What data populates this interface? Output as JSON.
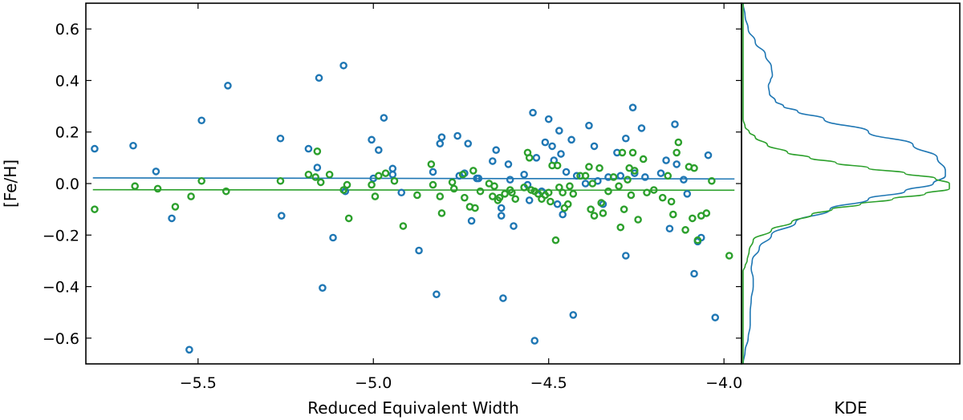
{
  "chart_data": [
    {
      "type": "scatter",
      "panel": "main",
      "xlabel": "Reduced Equivalent Width",
      "ylabel": "[Fe/H]",
      "xlim": [
        -5.82,
        -3.95
      ],
      "ylim": [
        -0.7,
        0.7
      ],
      "xticks": [
        -5.5,
        -5.0,
        -4.5,
        -4.0
      ],
      "xtick_labels": [
        "−5.5",
        "−5.0",
        "−4.5",
        "−4.0"
      ],
      "yticks": [
        0.6,
        0.4,
        0.2,
        0.0,
        -0.2,
        -0.4,
        -0.6
      ],
      "ytick_labels": [
        "0.6",
        "0.4",
        "0.2",
        "0.0",
        "−0.2",
        "−0.4",
        "−0.6"
      ],
      "series": [
        {
          "name": "blue",
          "color": "#1f77b4",
          "marker": "open-circle",
          "fit_line": {
            "x": [
              -5.8,
              -3.97
            ],
            "y": [
              0.022,
              0.018
            ]
          },
          "points": [
            [
              -5.795,
              0.135
            ],
            [
              -5.685,
              0.147
            ],
            [
              -5.62,
              0.047
            ],
            [
              -5.575,
              -0.135
            ],
            [
              -5.525,
              -0.645
            ],
            [
              -5.49,
              0.245
            ],
            [
              -5.415,
              0.38
            ],
            [
              -5.265,
              0.175
            ],
            [
              -5.262,
              -0.125
            ],
            [
              -5.185,
              0.135
            ],
            [
              -5.16,
              0.062
            ],
            [
              -5.155,
              0.41
            ],
            [
              -5.145,
              -0.405
            ],
            [
              -5.115,
              -0.21
            ],
            [
              -5.085,
              0.458
            ],
            [
              -5.08,
              -0.03
            ],
            [
              -5.005,
              0.17
            ],
            [
              -5.0,
              0.02
            ],
            [
              -4.985,
              0.13
            ],
            [
              -4.97,
              0.255
            ],
            [
              -4.945,
              0.035
            ],
            [
              -4.945,
              0.058
            ],
            [
              -4.92,
              -0.035
            ],
            [
              -4.87,
              -0.26
            ],
            [
              -4.83,
              0.045
            ],
            [
              -4.82,
              -0.43
            ],
            [
              -4.81,
              0.155
            ],
            [
              -4.805,
              0.18
            ],
            [
              -4.76,
              0.185
            ],
            [
              -4.755,
              0.03
            ],
            [
              -4.74,
              0.04
            ],
            [
              -4.73,
              0.155
            ],
            [
              -4.72,
              -0.145
            ],
            [
              -4.705,
              0.02
            ],
            [
              -4.7,
              0.02
            ],
            [
              -4.66,
              0.087
            ],
            [
              -4.65,
              0.13
            ],
            [
              -4.635,
              -0.095
            ],
            [
              -4.635,
              -0.125
            ],
            [
              -4.63,
              -0.445
            ],
            [
              -4.615,
              0.075
            ],
            [
              -4.61,
              0.015
            ],
            [
              -4.6,
              -0.165
            ],
            [
              -4.57,
              0.035
            ],
            [
              -4.56,
              -0.005
            ],
            [
              -4.555,
              -0.065
            ],
            [
              -4.545,
              0.275
            ],
            [
              -4.54,
              -0.61
            ],
            [
              -4.535,
              0.1
            ],
            [
              -4.52,
              -0.03
            ],
            [
              -4.51,
              0.16
            ],
            [
              -4.5,
              0.25
            ],
            [
              -4.49,
              0.145
            ],
            [
              -4.485,
              0.09
            ],
            [
              -4.475,
              -0.08
            ],
            [
              -4.47,
              0.205
            ],
            [
              -4.465,
              0.115
            ],
            [
              -4.46,
              -0.12
            ],
            [
              -4.45,
              0.045
            ],
            [
              -4.435,
              0.17
            ],
            [
              -4.43,
              -0.51
            ],
            [
              -4.42,
              0.03
            ],
            [
              -4.395,
              0.0
            ],
            [
              -4.385,
              0.225
            ],
            [
              -4.37,
              0.145
            ],
            [
              -4.36,
              0.01
            ],
            [
              -4.345,
              -0.08
            ],
            [
              -4.33,
              0.025
            ],
            [
              -4.305,
              0.12
            ],
            [
              -4.295,
              0.03
            ],
            [
              -4.28,
              0.175
            ],
            [
              -4.28,
              -0.28
            ],
            [
              -4.26,
              0.295
            ],
            [
              -4.255,
              0.04
            ],
            [
              -4.235,
              0.215
            ],
            [
              -4.225,
              0.025
            ],
            [
              -4.18,
              0.04
            ],
            [
              -4.165,
              0.09
            ],
            [
              -4.155,
              -0.175
            ],
            [
              -4.14,
              0.23
            ],
            [
              -4.135,
              0.075
            ],
            [
              -4.115,
              0.015
            ],
            [
              -4.105,
              -0.04
            ],
            [
              -4.085,
              -0.35
            ],
            [
              -4.075,
              -0.225
            ],
            [
              -4.065,
              -0.21
            ],
            [
              -4.045,
              0.11
            ],
            [
              -4.025,
              -0.52
            ]
          ]
        },
        {
          "name": "green",
          "color": "#2ca02c",
          "marker": "open-circle",
          "fit_line": {
            "x": [
              -5.8,
              -3.97
            ],
            "y": [
              -0.024,
              -0.026
            ]
          },
          "points": [
            [
              -5.795,
              -0.1
            ],
            [
              -5.68,
              -0.01
            ],
            [
              -5.615,
              -0.02
            ],
            [
              -5.565,
              -0.09
            ],
            [
              -5.52,
              -0.05
            ],
            [
              -5.49,
              0.01
            ],
            [
              -5.42,
              -0.03
            ],
            [
              -5.265,
              0.01
            ],
            [
              -5.185,
              0.035
            ],
            [
              -5.165,
              0.025
            ],
            [
              -5.16,
              0.125
            ],
            [
              -5.15,
              0.005
            ],
            [
              -5.125,
              0.035
            ],
            [
              -5.085,
              -0.025
            ],
            [
              -5.075,
              -0.005
            ],
            [
              -5.07,
              -0.135
            ],
            [
              -5.005,
              -0.005
            ],
            [
              -4.995,
              -0.05
            ],
            [
              -4.985,
              0.03
            ],
            [
              -4.965,
              0.04
            ],
            [
              -4.94,
              0.01
            ],
            [
              -4.915,
              -0.165
            ],
            [
              -4.875,
              -0.045
            ],
            [
              -4.835,
              0.075
            ],
            [
              -4.83,
              -0.005
            ],
            [
              -4.81,
              -0.05
            ],
            [
              -4.805,
              -0.115
            ],
            [
              -4.775,
              0.005
            ],
            [
              -4.77,
              -0.02
            ],
            [
              -4.745,
              0.035
            ],
            [
              -4.74,
              -0.055
            ],
            [
              -4.725,
              -0.09
            ],
            [
              -4.715,
              0.05
            ],
            [
              -4.71,
              -0.095
            ],
            [
              -4.695,
              -0.03
            ],
            [
              -4.67,
              0.0
            ],
            [
              -4.66,
              -0.05
            ],
            [
              -4.655,
              -0.01
            ],
            [
              -4.645,
              -0.065
            ],
            [
              -4.64,
              -0.055
            ],
            [
              -4.625,
              -0.04
            ],
            [
              -4.61,
              -0.025
            ],
            [
              -4.605,
              -0.035
            ],
            [
              -4.595,
              -0.06
            ],
            [
              -4.57,
              -0.015
            ],
            [
              -4.56,
              0.12
            ],
            [
              -4.555,
              0.1
            ],
            [
              -4.55,
              -0.025
            ],
            [
              -4.54,
              -0.03
            ],
            [
              -4.53,
              -0.04
            ],
            [
              -4.52,
              -0.06
            ],
            [
              -4.51,
              -0.045
            ],
            [
              -4.5,
              -0.035
            ],
            [
              -4.495,
              -0.07
            ],
            [
              -4.49,
              0.07
            ],
            [
              -4.48,
              -0.22
            ],
            [
              -4.475,
              0.07
            ],
            [
              -4.47,
              -0.015
            ],
            [
              -4.46,
              -0.035
            ],
            [
              -4.455,
              -0.095
            ],
            [
              -4.445,
              -0.08
            ],
            [
              -4.44,
              -0.01
            ],
            [
              -4.43,
              -0.04
            ],
            [
              -4.41,
              0.03
            ],
            [
              -4.395,
              0.03
            ],
            [
              -4.385,
              0.065
            ],
            [
              -4.38,
              -0.1
            ],
            [
              -4.375,
              0.0
            ],
            [
              -4.37,
              -0.125
            ],
            [
              -4.355,
              0.06
            ],
            [
              -4.35,
              -0.075
            ],
            [
              -4.345,
              -0.115
            ],
            [
              -4.33,
              -0.03
            ],
            [
              -4.315,
              0.025
            ],
            [
              -4.3,
              -0.01
            ],
            [
              -4.295,
              -0.17
            ],
            [
              -4.29,
              0.12
            ],
            [
              -4.285,
              -0.1
            ],
            [
              -4.275,
              0.015
            ],
            [
              -4.27,
              0.06
            ],
            [
              -4.265,
              -0.045
            ],
            [
              -4.26,
              0.12
            ],
            [
              -4.255,
              0.05
            ],
            [
              -4.245,
              -0.14
            ],
            [
              -4.23,
              0.095
            ],
            [
              -4.22,
              -0.035
            ],
            [
              -4.2,
              -0.025
            ],
            [
              -4.175,
              -0.055
            ],
            [
              -4.16,
              0.03
            ],
            [
              -4.15,
              -0.07
            ],
            [
              -4.145,
              -0.12
            ],
            [
              -4.135,
              0.12
            ],
            [
              -4.13,
              0.16
            ],
            [
              -4.11,
              -0.18
            ],
            [
              -4.1,
              0.065
            ],
            [
              -4.09,
              -0.135
            ],
            [
              -4.085,
              0.06
            ],
            [
              -4.075,
              -0.22
            ],
            [
              -4.065,
              -0.125
            ],
            [
              -4.05,
              -0.115
            ],
            [
              -4.035,
              0.01
            ],
            [
              -3.985,
              -0.28
            ]
          ]
        }
      ]
    },
    {
      "type": "line",
      "panel": "side",
      "xlabel": "KDE",
      "ylim": [
        -0.7,
        0.7
      ],
      "orientation": "horizontal-density",
      "series": [
        {
          "name": "blue-kde",
          "color": "#1f77b4",
          "y": [
            0.7,
            0.65,
            0.6,
            0.55,
            0.5,
            0.45,
            0.42,
            0.4,
            0.38,
            0.35,
            0.32,
            0.3,
            0.28,
            0.25,
            0.2,
            0.15,
            0.1,
            0.05,
            0.03,
            0.0,
            -0.03,
            -0.06,
            -0.1,
            -0.15,
            -0.2,
            -0.25,
            -0.3,
            -0.33,
            -0.37,
            -0.4,
            -0.45,
            -0.5,
            -0.55,
            -0.6,
            -0.65,
            -0.7
          ],
          "density": [
            0.0,
            0.01,
            0.025,
            0.06,
            0.11,
            0.14,
            0.145,
            0.135,
            0.125,
            0.13,
            0.16,
            0.2,
            0.27,
            0.4,
            0.62,
            0.84,
            0.96,
            1.0,
            1.0,
            0.94,
            0.8,
            0.62,
            0.43,
            0.26,
            0.14,
            0.08,
            0.045,
            0.04,
            0.05,
            0.05,
            0.04,
            0.035,
            0.035,
            0.025,
            0.01,
            0.0
          ]
        },
        {
          "name": "green-kde",
          "color": "#2ca02c",
          "y": [
            0.7,
            0.3,
            0.25,
            0.22,
            0.2,
            0.18,
            0.15,
            0.12,
            0.1,
            0.08,
            0.06,
            0.04,
            0.02,
            0.0,
            -0.02,
            -0.04,
            -0.06,
            -0.08,
            -0.1,
            -0.12,
            -0.15,
            -0.18,
            -0.22,
            -0.26,
            -0.3,
            -0.32,
            -0.34,
            -0.7
          ],
          "density": [
            0.0,
            0.0,
            0.0,
            0.01,
            0.03,
            0.06,
            0.12,
            0.22,
            0.33,
            0.46,
            0.62,
            0.8,
            0.95,
            1.02,
            1.02,
            0.9,
            0.74,
            0.58,
            0.44,
            0.34,
            0.24,
            0.14,
            0.05,
            0.03,
            0.02,
            0.01,
            0.0,
            0.0
          ]
        }
      ]
    }
  ]
}
